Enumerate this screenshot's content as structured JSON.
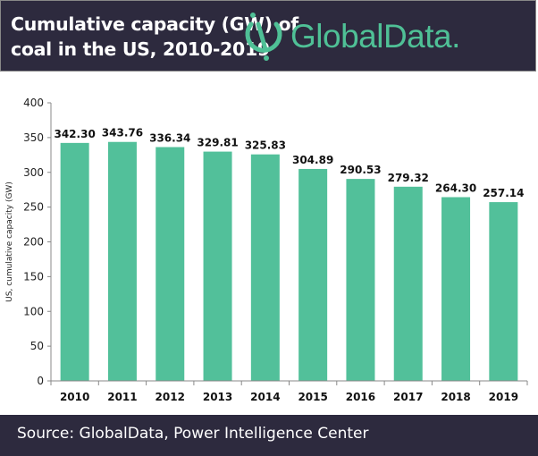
{
  "header": {
    "title_line1": "Cumulative capacity (GW) of",
    "title_line2": "coal in the US, 2010-2019",
    "logo_text": "GlobalData."
  },
  "footer": {
    "source": "Source:  GlobalData, Power Intelligence Center"
  },
  "colors": {
    "bar": "#52c09a",
    "header_bg": "#2d2a3e",
    "logo": "#4fc096"
  },
  "chart_data": {
    "type": "bar",
    "title": "Cumulative capacity (GW) of coal in the US, 2010-2019",
    "categories": [
      "2010",
      "2011",
      "2012",
      "2013",
      "2014",
      "2015",
      "2016",
      "2017",
      "2018",
      "2019"
    ],
    "values": [
      342.3,
      343.76,
      336.34,
      329.81,
      325.83,
      304.89,
      290.53,
      279.32,
      264.3,
      257.14
    ],
    "data_labels": [
      "342.30",
      "343.76",
      "336.34",
      "329.81",
      "325.83",
      "304.89",
      "290.53",
      "279.32",
      "264.30",
      "257.14"
    ],
    "ylabel": "US, cumulative capacity (GW)",
    "xlabel": "",
    "ylim": [
      0,
      400
    ],
    "yticks": [
      0,
      50,
      100,
      150,
      200,
      250,
      300,
      350,
      400
    ],
    "grid": false
  }
}
